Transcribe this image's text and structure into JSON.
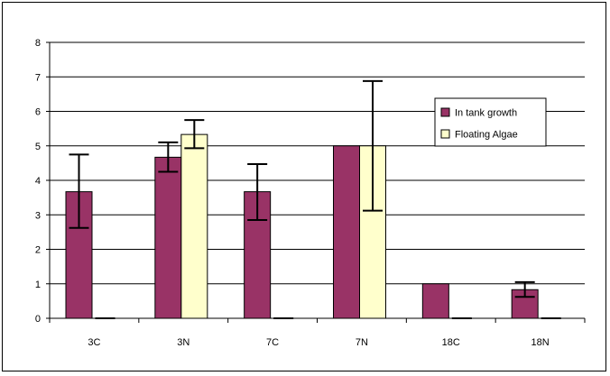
{
  "chart_data": {
    "type": "bar",
    "categories": [
      "3C",
      "3N",
      "7C",
      "7N",
      "18C",
      "18N"
    ],
    "series": [
      {
        "name": "In tank growth",
        "color": "#993366",
        "values": [
          3.67,
          4.67,
          3.67,
          5.0,
          1.0,
          0.83
        ],
        "error_low": [
          2.62,
          4.25,
          2.85,
          5.0,
          1.0,
          0.62
        ],
        "error_high": [
          4.75,
          5.1,
          4.47,
          5.0,
          1.0,
          1.05
        ]
      },
      {
        "name": "Floating Algae",
        "color": "#FFFFCC",
        "values": [
          0,
          5.33,
          0,
          5.0,
          0,
          0
        ],
        "error_low": [
          0,
          4.93,
          0,
          3.12,
          0,
          0
        ],
        "error_high": [
          0,
          5.75,
          0,
          6.88,
          0,
          0
        ]
      }
    ],
    "ylim": [
      0,
      8
    ],
    "yticks": [
      "0",
      "1",
      "2",
      "3",
      "4",
      "5",
      "6",
      "7",
      "8"
    ],
    "grid": true,
    "legend_position": "right",
    "title": "",
    "xlabel": "",
    "ylabel": ""
  }
}
